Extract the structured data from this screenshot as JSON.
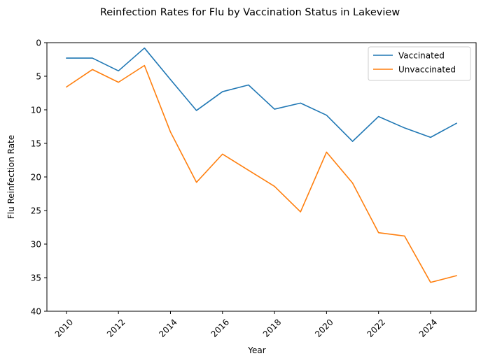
{
  "chart_data": {
    "type": "line",
    "title": "Reinfection Rates for Flu by Vaccination Status in Lakeview",
    "xlabel": "Year",
    "ylabel": "Flu Reinfection Rate",
    "y_inverted": true,
    "ylim": [
      0,
      40
    ],
    "yticks": [
      "0",
      "5",
      "10",
      "15",
      "20",
      "25",
      "30",
      "35",
      "40"
    ],
    "xticks": [
      "2010",
      "2012",
      "2014",
      "2016",
      "2018",
      "2020",
      "2022",
      "2024"
    ],
    "xtick_rotation": 45,
    "grid": false,
    "legend_position": "top-right",
    "x": [
      2010,
      2011,
      2012,
      2013,
      2014,
      2015,
      2016,
      2017,
      2018,
      2019,
      2020,
      2021,
      2022,
      2023,
      2024,
      2025
    ],
    "series": [
      {
        "name": "Vaccinated",
        "color": "#1f77b4",
        "values": [
          2.3,
          2.3,
          4.2,
          0.8,
          5.5,
          10.1,
          7.3,
          6.3,
          9.9,
          9.0,
          10.8,
          14.7,
          11.0,
          12.7,
          14.1,
          12.0
        ]
      },
      {
        "name": "Unvaccinated",
        "color": "#ff7f0e",
        "values": [
          6.6,
          4.0,
          5.9,
          3.4,
          13.3,
          20.8,
          16.6,
          19.0,
          21.4,
          25.2,
          16.3,
          20.9,
          28.3,
          28.8,
          35.7,
          34.7
        ]
      }
    ]
  }
}
